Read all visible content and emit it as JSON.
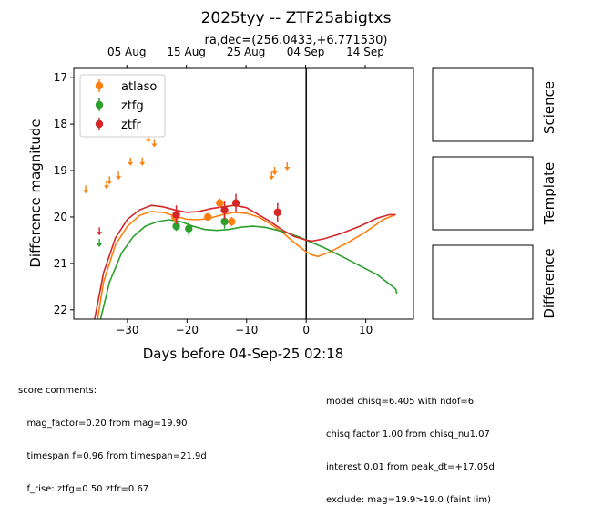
{
  "title": "2025tyy -- ZTF25abigtxs",
  "subtitle": "ra,dec=(256.0433,+6.771530)",
  "chart_data": {
    "type": "scatter",
    "xlabel": "Days before 04-Sep-25 02:18",
    "ylabel": "Difference magnitude",
    "xlim": [
      -39,
      18
    ],
    "ylim": [
      22.2,
      16.8
    ],
    "y_inverted": true,
    "x_ticks": [
      -30,
      -20,
      -10,
      0,
      10
    ],
    "y_ticks": [
      17,
      18,
      19,
      20,
      21,
      22
    ],
    "top_axis_ticks": [
      {
        "x": -30.1,
        "label": "05 Aug"
      },
      {
        "x": -20.1,
        "label": "15 Aug"
      },
      {
        "x": -10.1,
        "label": "25 Aug"
      },
      {
        "x": -0.1,
        "label": "04 Sep"
      },
      {
        "x": 9.9,
        "label": "14 Sep"
      }
    ],
    "vline_x": 0,
    "legend_position": "upper-left",
    "series": [
      {
        "name": "atlaso",
        "color": "#ff7f0e",
        "points": [
          {
            "x": -22,
            "y": 20.0,
            "err": 0.1
          },
          {
            "x": -16.5,
            "y": 20.0,
            "err": 0.08
          },
          {
            "x": -14.5,
            "y": 19.7,
            "err": 0.1
          },
          {
            "x": -12.5,
            "y": 20.1,
            "err": 0.1
          }
        ],
        "upper_limits": [
          {
            "x": -37,
            "y": 19.4
          },
          {
            "x": -33.5,
            "y": 19.3
          },
          {
            "x": -33,
            "y": 19.2
          },
          {
            "x": -31.5,
            "y": 19.1
          },
          {
            "x": -29.5,
            "y": 18.8
          },
          {
            "x": -27.5,
            "y": 18.8
          },
          {
            "x": -26.5,
            "y": 18.3
          },
          {
            "x": -25.5,
            "y": 18.4
          },
          {
            "x": -5.8,
            "y": 19.1
          },
          {
            "x": -5.3,
            "y": 19.0
          },
          {
            "x": -3.2,
            "y": 18.9
          }
        ],
        "model": [
          [
            -35,
            22.2
          ],
          [
            -34,
            21.4
          ],
          [
            -32,
            20.6
          ],
          [
            -30,
            20.2
          ],
          [
            -28,
            19.97
          ],
          [
            -26,
            19.88
          ],
          [
            -24,
            19.9
          ],
          [
            -22,
            19.98
          ],
          [
            -20,
            20.05
          ],
          [
            -18,
            20.06
          ],
          [
            -16,
            20.02
          ],
          [
            -14,
            19.95
          ],
          [
            -12,
            19.9
          ],
          [
            -10,
            19.92
          ],
          [
            -8,
            20.0
          ],
          [
            -6,
            20.15
          ],
          [
            -4,
            20.33
          ],
          [
            -2,
            20.55
          ],
          [
            0,
            20.75
          ],
          [
            1,
            20.82
          ],
          [
            2,
            20.85
          ],
          [
            4,
            20.75
          ],
          [
            7,
            20.55
          ],
          [
            10,
            20.32
          ],
          [
            13,
            20.05
          ],
          [
            15,
            19.95
          ]
        ]
      },
      {
        "name": "ztfg",
        "color": "#2ca02c",
        "points": [
          {
            "x": -21.8,
            "y": 20.2,
            "err": 0.1
          },
          {
            "x": -19.7,
            "y": 20.25,
            "err": 0.15
          },
          {
            "x": -13.7,
            "y": 20.1,
            "err": 0.15
          }
        ],
        "upper_limits": [
          {
            "x": -34.7,
            "y": 20.55
          }
        ],
        "model": [
          [
            -34.5,
            22.2
          ],
          [
            -33,
            21.4
          ],
          [
            -31,
            20.78
          ],
          [
            -29,
            20.42
          ],
          [
            -27,
            20.2
          ],
          [
            -25,
            20.1
          ],
          [
            -23,
            20.06
          ],
          [
            -21,
            20.1
          ],
          [
            -19,
            20.2
          ],
          [
            -17,
            20.27
          ],
          [
            -15,
            20.29
          ],
          [
            -13,
            20.27
          ],
          [
            -11,
            20.22
          ],
          [
            -9,
            20.2
          ],
          [
            -7,
            20.22
          ],
          [
            -5,
            20.28
          ],
          [
            -3,
            20.35
          ],
          [
            -1,
            20.44
          ],
          [
            0,
            20.5
          ],
          [
            3,
            20.66
          ],
          [
            6,
            20.85
          ],
          [
            9,
            21.05
          ],
          [
            12,
            21.25
          ],
          [
            15,
            21.55
          ],
          [
            15.2,
            21.65
          ]
        ]
      },
      {
        "name": "ztfr",
        "color": "#d62728",
        "points": [
          {
            "x": -21.8,
            "y": 19.95,
            "err": 0.2
          },
          {
            "x": -13.7,
            "y": 19.85,
            "err": 0.2
          },
          {
            "x": -11.8,
            "y": 19.7,
            "err": 0.2
          },
          {
            "x": -4.8,
            "y": 19.9,
            "err": 0.2
          }
        ],
        "upper_limits": [
          {
            "x": -34.7,
            "y": 20.3
          }
        ],
        "model": [
          [
            -35.5,
            22.2
          ],
          [
            -34,
            21.2
          ],
          [
            -32,
            20.45
          ],
          [
            -30,
            20.05
          ],
          [
            -28,
            19.85
          ],
          [
            -26,
            19.75
          ],
          [
            -24,
            19.78
          ],
          [
            -22,
            19.85
          ],
          [
            -20,
            19.9
          ],
          [
            -18,
            19.88
          ],
          [
            -16,
            19.82
          ],
          [
            -14,
            19.78
          ],
          [
            -12,
            19.75
          ],
          [
            -10,
            19.8
          ],
          [
            -8,
            19.95
          ],
          [
            -6,
            20.1
          ],
          [
            -4,
            20.28
          ],
          [
            -2,
            20.42
          ],
          [
            0,
            20.5
          ],
          [
            1,
            20.52
          ],
          [
            3,
            20.47
          ],
          [
            6,
            20.35
          ],
          [
            9,
            20.2
          ],
          [
            12,
            20.02
          ],
          [
            14,
            19.95
          ],
          [
            15,
            19.95
          ]
        ]
      }
    ]
  },
  "panels": [
    "Science",
    "Template",
    "Difference"
  ],
  "comments_left": [
    "score comments:",
    "   mag_factor=0.20 from mag=19.90",
    "   timespan f=0.96 from timespan=21.9d",
    "   f_rise: ztfg=0.50 ztfr=0.67"
  ],
  "comments_right": [
    "model chisq=6.405 with ndof=6",
    "chisq factor 1.00 from chisq_nu1.07",
    "interest 0.01 from peak_dt=+17.05d",
    "exclude: mag=19.9>19.0 (faint lim)"
  ]
}
